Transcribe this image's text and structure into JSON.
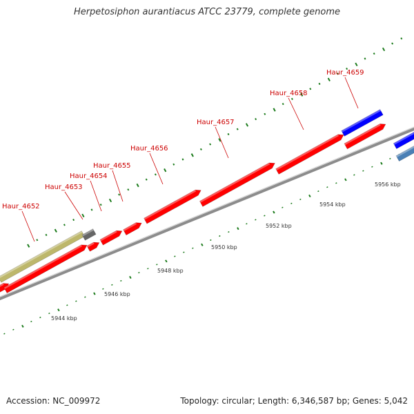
{
  "header": {
    "title": "Herpetosiphon aurantiacus ATCC 23779, complete genome"
  },
  "footer": {
    "accession": "Accession: NC_009972",
    "summary": "Topology: circular; Length: 6,346,587 bp; Genes: 5,042"
  },
  "colors": {
    "gene_red": "#ff0000",
    "gene_blue": "#0000ff",
    "gene_steelblue": "#4a7fb5",
    "gene_olive": "#bdb76b",
    "gene_gray": "#666666",
    "backbone": "#8c8c8c",
    "gc_ticks": "#1a7a1a",
    "label_red": "#cc0000"
  },
  "scale": {
    "unit": "kbp",
    "labels": [
      "5944 kbp",
      "5946 kbp",
      "5948 kbp",
      "5950 kbp",
      "5952 kbp",
      "5954 kbp",
      "5956 kbp"
    ]
  },
  "genes": [
    {
      "name": "Haur_4652"
    },
    {
      "name": "Haur_4653"
    },
    {
      "name": "Haur_4654"
    },
    {
      "name": "Haur_4655"
    },
    {
      "name": "Haur_4656"
    },
    {
      "name": "Haur_4657"
    },
    {
      "name": "Haur_4658"
    },
    {
      "name": "Haur_4659"
    }
  ]
}
